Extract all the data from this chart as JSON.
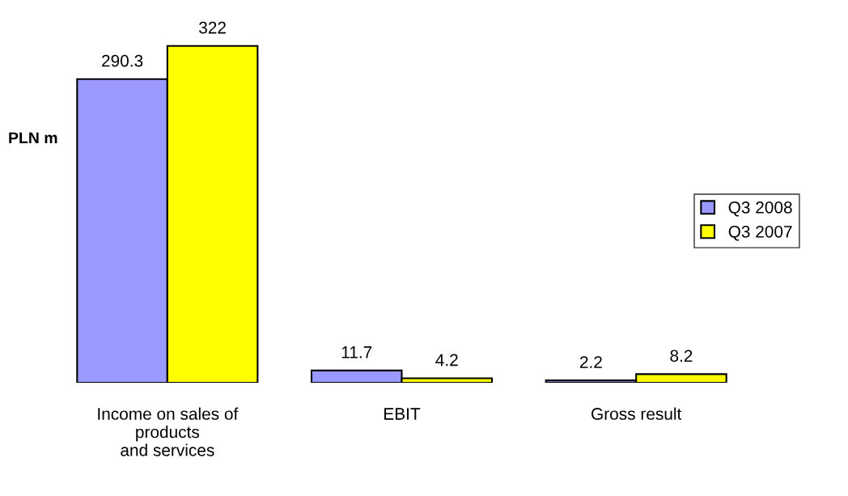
{
  "chart_data": {
    "type": "bar",
    "ylabel": "PLN m",
    "categories": [
      "Income on sales of\nproducts\nand services",
      "EBIT",
      "Gross result"
    ],
    "series": [
      {
        "name": "Q3 2008",
        "color": "#9999ff",
        "values": [
          290.3,
          11.7,
          2.2
        ]
      },
      {
        "name": "Q3 2007",
        "color": "#ffff00",
        "values": [
          322,
          4.2,
          8.2
        ]
      }
    ],
    "data_labels": true,
    "legend": "right",
    "grid": false
  }
}
